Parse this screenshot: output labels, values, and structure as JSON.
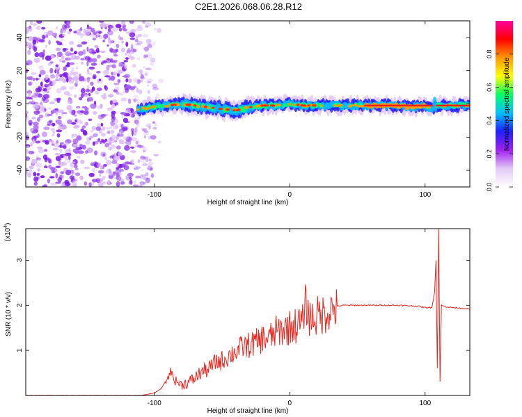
{
  "figure": {
    "title": "C2E1.2026.068.06.28.R12"
  },
  "chart_data": [
    {
      "type": "heatmap",
      "name": "spectrogram",
      "xlabel": "Height of straight line (km)",
      "ylabel": "Frequency (Hz)",
      "xlim": [
        -195,
        133
      ],
      "ylim": [
        -50,
        50
      ],
      "xticks": [
        -100,
        0,
        100
      ],
      "yticks": [
        -40,
        -20,
        0,
        20,
        40
      ],
      "noise_region_x": [
        -195,
        -103
      ],
      "ridge": {
        "x": [
          -110,
          -100,
          -90,
          -80,
          -70,
          -60,
          -50,
          -40,
          -30,
          -20,
          -10,
          0,
          10,
          20,
          40,
          60,
          80,
          90,
          100,
          105,
          110,
          133
        ],
        "freq": [
          -3,
          -2,
          -1,
          0,
          -1,
          -2,
          -3,
          -4,
          -2,
          -1,
          -1,
          0,
          -1,
          -1,
          -1,
          -1,
          -1,
          -2,
          -1,
          -3,
          -1,
          -1
        ]
      },
      "colorbar": {
        "label": "Normalized spectral amplitude",
        "ticks": [
          "0.0",
          "0.2",
          "0.4",
          "0.6",
          "0.8"
        ],
        "range": [
          0,
          1
        ],
        "colors": [
          "#ffffff",
          "#e3c8f5",
          "#a020f0",
          "#2020ff",
          "#00bfff",
          "#00ff66",
          "#ffff00",
          "#ff9900",
          "#ff0000",
          "#ff00a0"
        ]
      }
    },
    {
      "type": "line",
      "name": "snr",
      "xlabel": "Height of straight line (km)",
      "ylabel": "SNR (10 * v/v)",
      "y_multiplier": "(x10",
      "y_multiplier_exp": "4",
      "y_multiplier_close": ")",
      "xlim": [
        -195,
        133
      ],
      "ylim": [
        0,
        3.7
      ],
      "xticks": [
        -100,
        0,
        100
      ],
      "yticks": [
        1,
        2,
        3
      ],
      "color": "#e8261e",
      "series": [
        {
          "name": "SNR",
          "x": [
            -195,
            -110,
            -100,
            -95,
            -90,
            -88,
            -85,
            -80,
            -75,
            -70,
            -65,
            -60,
            -55,
            -50,
            -45,
            -40,
            -35,
            -30,
            -25,
            -20,
            -15,
            -10,
            -5,
            0,
            5,
            10,
            11,
            15,
            20,
            25,
            30,
            35,
            40,
            60,
            80,
            95,
            100,
            105,
            107,
            108,
            109,
            110,
            111,
            112,
            115,
            120,
            133
          ],
          "y": [
            0.0,
            0.0,
            0.05,
            0.15,
            0.4,
            0.55,
            0.35,
            0.25,
            0.3,
            0.4,
            0.55,
            0.6,
            0.75,
            0.8,
            0.9,
            1.0,
            1.1,
            1.15,
            1.2,
            1.3,
            1.3,
            1.45,
            1.5,
            1.55,
            1.6,
            1.65,
            2.15,
            1.75,
            1.8,
            1.85,
            1.95,
            1.98,
            2.0,
            2.0,
            2.0,
            1.98,
            1.95,
            1.95,
            2.3,
            3.0,
            0.6,
            3.7,
            0.3,
            2.0,
            1.97,
            1.95,
            1.92
          ]
        }
      ]
    }
  ]
}
